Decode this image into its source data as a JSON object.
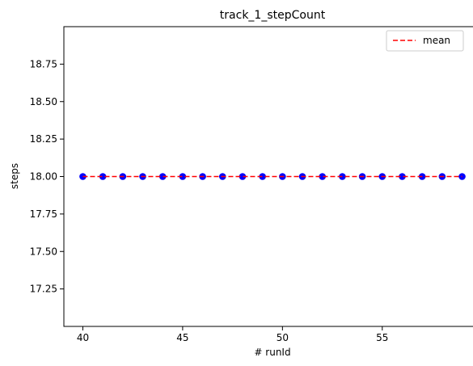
{
  "chart_data": {
    "type": "scatter",
    "title": "track_1_stepCount",
    "xlabel": "# runId",
    "ylabel": "steps",
    "xlim": [
      39.05,
      59.95
    ],
    "ylim": [
      17.0,
      19.0
    ],
    "x_ticks": [
      40,
      45,
      50,
      55
    ],
    "x_tick_labels": [
      "40",
      "45",
      "50",
      "55"
    ],
    "y_ticks": [
      17.25,
      17.5,
      17.75,
      18.0,
      18.25,
      18.5,
      18.75
    ],
    "y_tick_labels": [
      "17.25",
      "17.50",
      "17.75",
      "18.00",
      "18.25",
      "18.50",
      "18.75"
    ],
    "grid": false,
    "legend_position": "top-right",
    "series": [
      {
        "marker_color": "#0000ff",
        "x": [
          40,
          41,
          42,
          43,
          44,
          45,
          46,
          47,
          48,
          49,
          50,
          51,
          52,
          53,
          54,
          55,
          56,
          57,
          58,
          59
        ],
        "y": [
          18,
          18,
          18,
          18,
          18,
          18,
          18,
          18,
          18,
          18,
          18,
          18,
          18,
          18,
          18,
          18,
          18,
          18,
          18,
          18
        ]
      }
    ],
    "mean_line": {
      "name": "mean",
      "value": 18.0,
      "color": "#ff0000",
      "style": "dashed"
    }
  }
}
